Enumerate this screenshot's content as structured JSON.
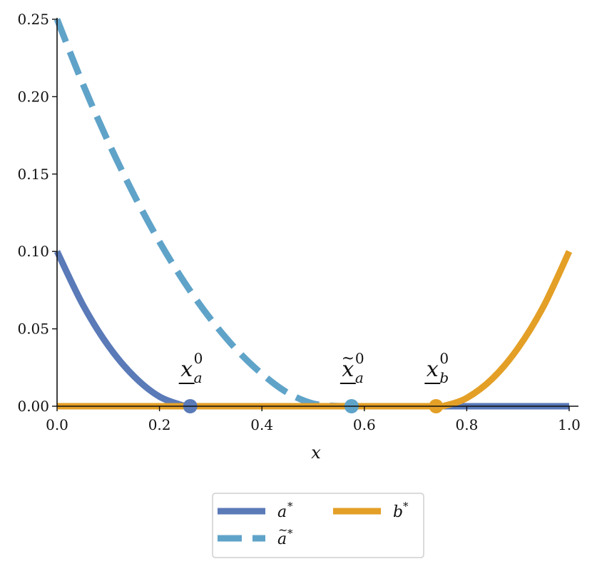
{
  "chart_data": {
    "type": "line",
    "title": "",
    "xlabel": "x",
    "ylabel": "",
    "xlim": [
      0.0,
      1.0
    ],
    "ylim": [
      0.0,
      0.25
    ],
    "xticks": [
      "0.0",
      "0.2",
      "0.4",
      "0.6",
      "0.8",
      "1.0"
    ],
    "yticks": [
      "0.00",
      "0.05",
      "0.10",
      "0.15",
      "0.20",
      "0.25"
    ],
    "grid": false,
    "legend_position": "below",
    "series": [
      {
        "name": "a*",
        "legend_base": "a",
        "legend_accent": "",
        "style": "solid",
        "color": "#5a7ab8",
        "x": [
          0.0,
          0.05,
          0.1,
          0.15,
          0.2,
          0.25,
          0.26,
          0.4,
          0.6,
          0.8,
          1.0
        ],
        "y": [
          0.1,
          0.0658,
          0.0391,
          0.0194,
          0.0062,
          0.0001,
          0.0,
          0.0,
          0.0,
          0.0,
          0.0
        ]
      },
      {
        "name": "ã*",
        "legend_base": "a",
        "legend_accent": "~",
        "style": "dashed",
        "color": "#5fa3c9",
        "x": [
          0.0,
          0.05,
          0.1,
          0.15,
          0.2,
          0.25,
          0.3,
          0.35,
          0.4,
          0.45,
          0.5,
          0.55,
          0.575,
          0.7,
          0.8,
          0.9,
          1.0
        ],
        "y": [
          0.25,
          0.2085,
          0.1708,
          0.1367,
          0.1062,
          0.0794,
          0.0563,
          0.0367,
          0.0209,
          0.0087,
          0.0017,
          0.0001,
          0.0,
          0.0,
          0.0,
          0.0,
          0.0
        ]
      },
      {
        "name": "b*",
        "legend_base": "b",
        "legend_accent": "",
        "style": "solid",
        "color": "#e39f26",
        "x": [
          0.0,
          0.2,
          0.4,
          0.6,
          0.74,
          0.76,
          0.8,
          0.85,
          0.9,
          0.95,
          1.0
        ],
        "y": [
          0.0,
          0.0,
          0.0,
          0.0,
          0.0,
          0.0006,
          0.0053,
          0.0178,
          0.0375,
          0.0646,
          0.1
        ]
      }
    ],
    "markers": [
      {
        "x": 0.26,
        "y": 0.0,
        "color": "#5a7ab8"
      },
      {
        "x": 0.575,
        "y": 0.0,
        "color": "#5fa3c9"
      },
      {
        "x": 0.74,
        "y": 0.0,
        "color": "#e39f26"
      }
    ],
    "annotations": [
      {
        "x": 0.26,
        "base": "x",
        "accent": "",
        "sub": "a",
        "sup": "0"
      },
      {
        "x": 0.575,
        "base": "x",
        "accent": "~",
        "sub": "a",
        "sup": "0"
      },
      {
        "x": 0.74,
        "base": "x",
        "accent": "",
        "sub": "b",
        "sup": "0"
      }
    ]
  }
}
